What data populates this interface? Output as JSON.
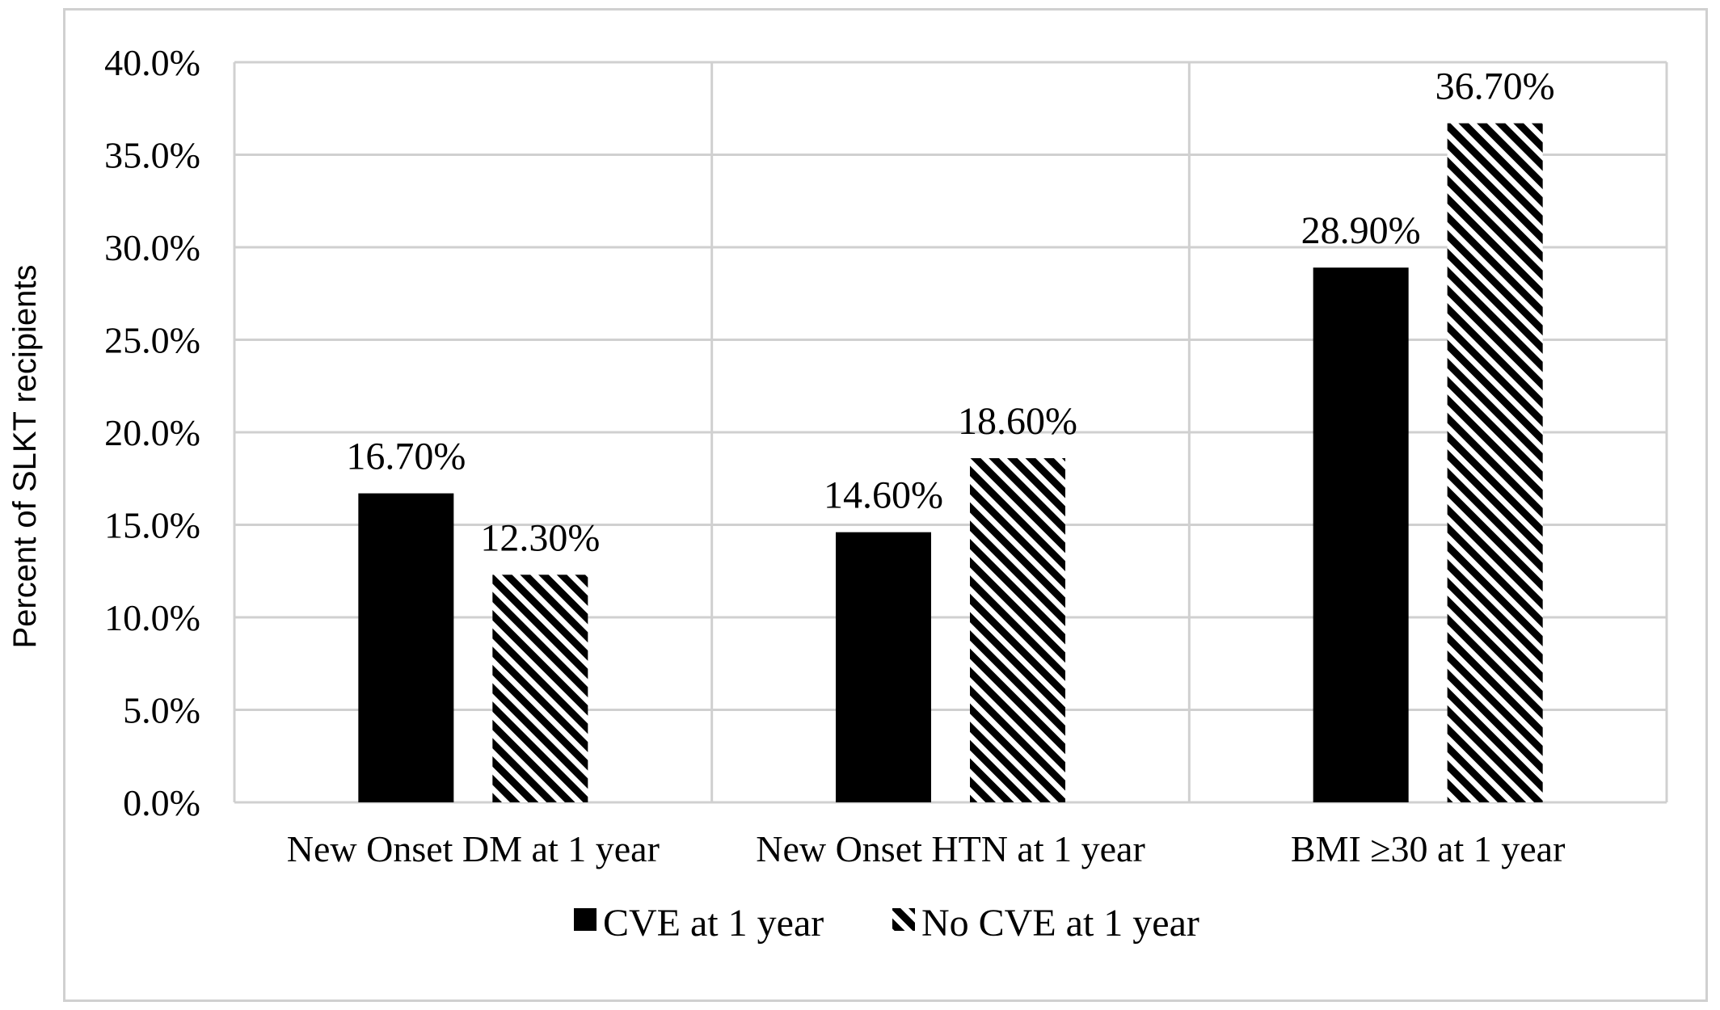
{
  "chart_data": {
    "type": "bar",
    "categories": [
      "New Onset DM at 1 year",
      "New Onset HTN at 1 year",
      "BMI ≥30 at 1 year"
    ],
    "series": [
      {
        "name": "CVE at 1 year",
        "values": [
          16.7,
          14.6,
          28.9
        ],
        "labels": [
          "16.70%",
          "14.60%",
          "28.90%"
        ],
        "fill": "solid",
        "color": "#000000"
      },
      {
        "name": "No CVE at 1 year",
        "values": [
          12.3,
          18.6,
          36.7
        ],
        "labels": [
          "12.30%",
          "18.60%",
          "36.70%"
        ],
        "fill": "diagonal-hatch",
        "color": "#000000"
      }
    ],
    "ylabel": "Percent of SLKT recipients",
    "xlabel": "",
    "ylim": [
      0,
      40
    ],
    "yticks": [
      0,
      5,
      10,
      15,
      20,
      25,
      30,
      35,
      40
    ],
    "ytick_labels": [
      "0.0%",
      "5.0%",
      "10.0%",
      "15.0%",
      "20.0%",
      "25.0%",
      "30.0%",
      "35.0%",
      "40.0%"
    ],
    "grid": "both",
    "legend_position": "bottom",
    "gridline_color": "#d0d0d0"
  }
}
